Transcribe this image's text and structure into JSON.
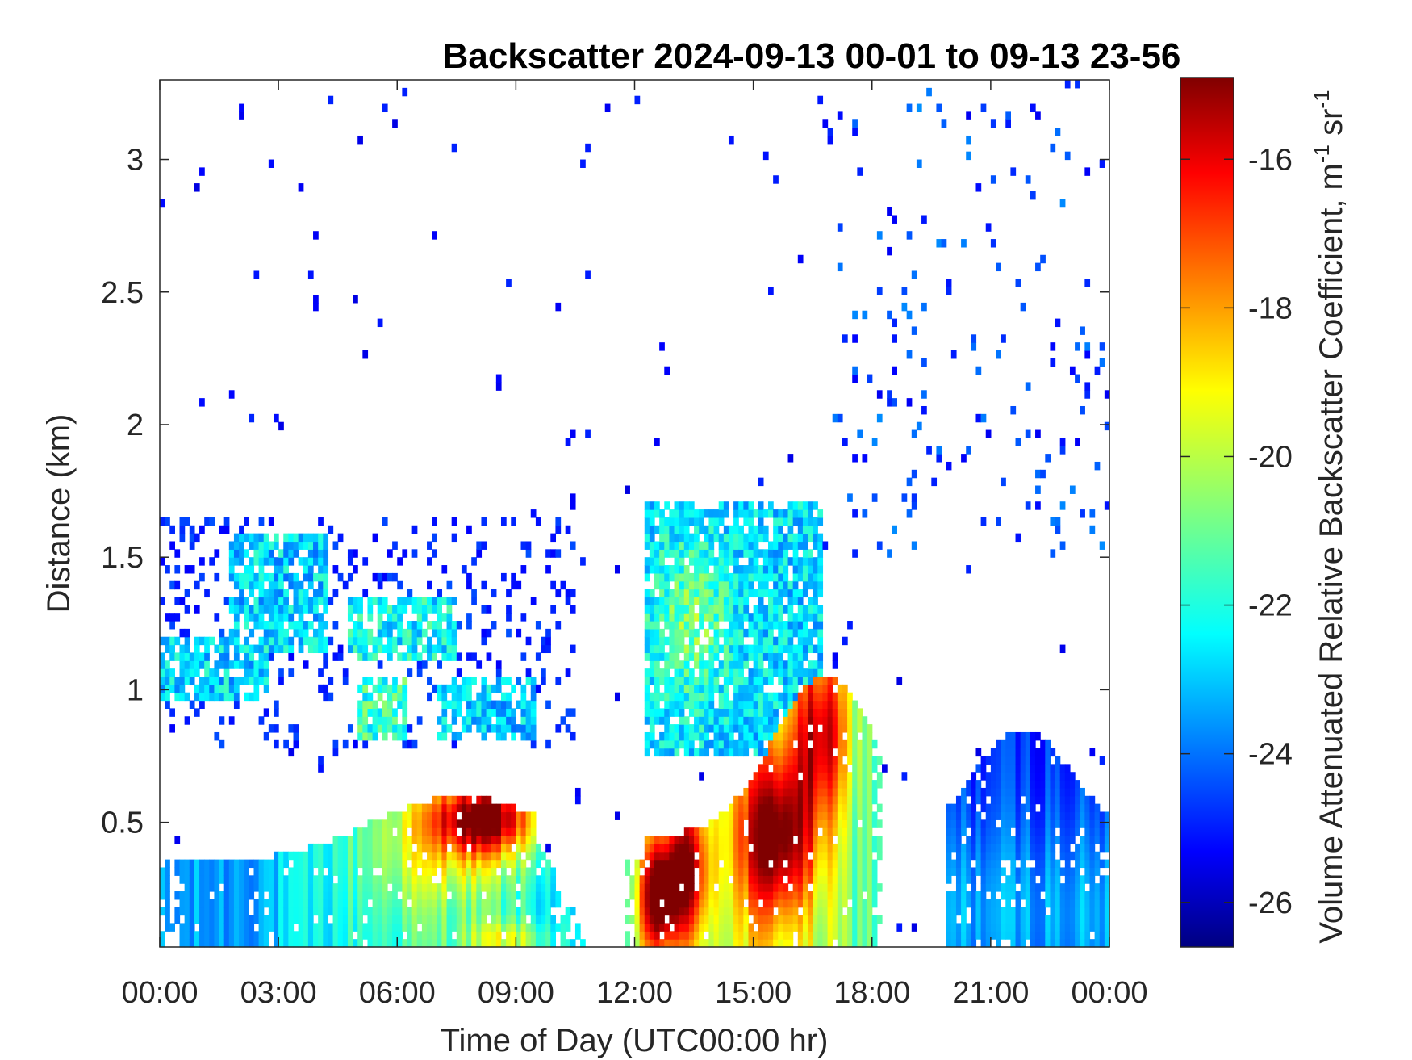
{
  "chart_data": {
    "type": "heatmap",
    "title": "Backscatter 2024-09-13 00-01 to 09-13 23-56",
    "xlabel": "Time of Day (UTC00:00 hr)",
    "ylabel": "Distance (km)",
    "xlim": [
      0,
      24
    ],
    "ylim": [
      0.03,
      3.3
    ],
    "xticks": [
      {
        "value": 0,
        "label": "00:00"
      },
      {
        "value": 3,
        "label": "03:00"
      },
      {
        "value": 6,
        "label": "06:00"
      },
      {
        "value": 9,
        "label": "09:00"
      },
      {
        "value": 12,
        "label": "12:00"
      },
      {
        "value": 15,
        "label": "15:00"
      },
      {
        "value": 18,
        "label": "18:00"
      },
      {
        "value": 21,
        "label": "21:00"
      },
      {
        "value": 24,
        "label": "00:00"
      }
    ],
    "yticks": [
      {
        "value": 0.5,
        "label": "0.5"
      },
      {
        "value": 1,
        "label": "1"
      },
      {
        "value": 1.5,
        "label": "1.5"
      },
      {
        "value": 2,
        "label": "2"
      },
      {
        "value": 2.5,
        "label": "2.5"
      },
      {
        "value": 3,
        "label": "3"
      }
    ],
    "colorbar": {
      "label": "Volume Attenuated Relative Backscatter Coefficient, m",
      "label_sup1": "-1",
      "label_mid": " sr",
      "label_sup2": "-1",
      "clim": [
        -26.6,
        -14.9
      ],
      "colormap": "jet",
      "ticks": [
        {
          "value": -16,
          "label": "-16"
        },
        {
          "value": -18,
          "label": "-18"
        },
        {
          "value": -20,
          "label": "-20"
        },
        {
          "value": -22,
          "label": "-22"
        },
        {
          "value": -24,
          "label": "-24"
        },
        {
          "value": -26,
          "label": "-26"
        }
      ]
    },
    "features": [
      {
        "name": "boundary-layer-morning",
        "t": [
          0,
          10.8
        ],
        "z": [
          0.03,
          0.62
        ],
        "peak_t": 8.2,
        "peak_z": 0.5,
        "peak_value": -15.8
      },
      {
        "name": "boundary-layer-afternoon",
        "t": [
          11.8,
          18.4
        ],
        "z": [
          0.03,
          1.1
        ],
        "peak_t": 15.7,
        "peak_z": 0.45,
        "peak_value": -16.2
      },
      {
        "name": "evening-layer",
        "t": [
          20,
          24
        ],
        "z": [
          0.03,
          0.9
        ],
        "peak_value": -23.5
      },
      {
        "name": "cloud-layer-morning",
        "t": [
          0,
          10.5
        ],
        "z": [
          0.8,
          1.65
        ],
        "peak_value": -21.5
      },
      {
        "name": "cloud-layer-midday",
        "t": [
          12.2,
          16.8
        ],
        "z": [
          0.8,
          1.7
        ],
        "peak_value": -21.8
      },
      {
        "name": "sparse-high-returns",
        "t": [
          17,
          24
        ],
        "z": [
          1.6,
          3.3
        ],
        "peak_value": -24.5
      }
    ]
  }
}
